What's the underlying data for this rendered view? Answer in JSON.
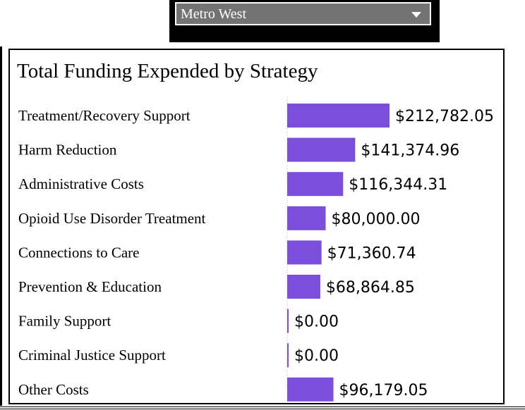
{
  "filter": {
    "selected": "Metro West"
  },
  "chart_data": {
    "type": "bar",
    "orientation": "horizontal",
    "title": "Total Funding Expended by Strategy",
    "categories": [
      "Treatment/Recovery Support",
      "Harm Reduction",
      "Administrative Costs",
      "Opioid Use Disorder Treatment",
      "Connections to Care",
      "Prevention & Education",
      "Family Support",
      "Criminal Justice Support",
      "Other Costs"
    ],
    "values": [
      212782.05,
      141374.96,
      116344.31,
      80000.0,
      71360.74,
      68864.85,
      0.0,
      0.0,
      96179.05
    ],
    "value_labels": [
      "$212,782.05",
      "$141,374.96",
      "$116,344.31",
      "$80,000.00",
      "$71,360.74",
      "$68,864.85",
      "$0.00",
      "$0.00",
      "$96,179.05"
    ],
    "bar_color": "#7b4fdb",
    "grid": false
  }
}
